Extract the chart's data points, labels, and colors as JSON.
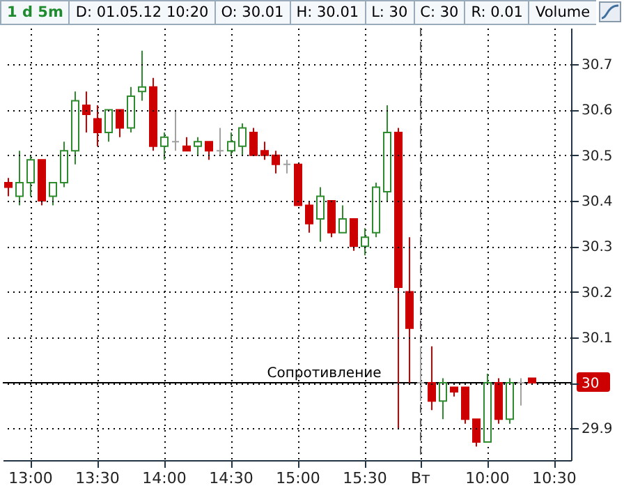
{
  "chart_data": {
    "type": "candlestick",
    "title": "1 d 5m",
    "annotations": [
      "D: 01.05.12 10:20",
      "O: 30.01",
      "H: 30.01",
      "L: 30",
      "C: 30",
      "R: 0.01",
      "Volume"
    ],
    "categories": [
      null,
      null,
      "13:00",
      null,
      null,
      null,
      null,
      null,
      "13:30",
      null,
      null,
      null,
      null,
      null,
      "14:00",
      null,
      null,
      null,
      null,
      null,
      "14:30",
      null,
      null,
      null,
      null,
      null,
      "15:00",
      null,
      null,
      null,
      null,
      null,
      "15:30",
      null,
      null,
      null,
      null,
      "Вт",
      null,
      null,
      null,
      null,
      null,
      "10:00",
      null,
      null,
      null,
      null,
      null,
      "10:30",
      null
    ],
    "ohlc": [
      [
        30.44,
        30.45,
        30.41,
        30.43
      ],
      [
        30.41,
        30.51,
        30.39,
        30.44
      ],
      [
        30.44,
        30.5,
        30.41,
        30.49
      ],
      [
        30.49,
        30.49,
        30.39,
        30.4
      ],
      [
        30.41,
        30.44,
        30.39,
        30.44
      ],
      [
        30.44,
        30.53,
        30.43,
        30.51
      ],
      [
        30.51,
        30.64,
        30.48,
        30.62
      ],
      [
        30.61,
        30.64,
        30.55,
        30.59
      ],
      [
        30.58,
        30.61,
        30.52,
        30.55
      ],
      [
        30.55,
        30.6,
        30.53,
        30.6
      ],
      [
        30.6,
        30.6,
        30.54,
        30.56
      ],
      [
        30.56,
        30.65,
        30.55,
        30.63
      ],
      [
        30.64,
        30.73,
        30.62,
        30.65
      ],
      [
        30.65,
        30.67,
        30.51,
        30.52
      ],
      [
        30.52,
        30.55,
        30.49,
        30.54
      ],
      [
        30.53,
        30.6,
        30.51,
        30.53
      ],
      [
        30.52,
        30.54,
        30.51,
        30.51
      ],
      [
        30.52,
        30.54,
        30.5,
        30.53
      ],
      [
        30.53,
        30.53,
        30.49,
        30.51
      ],
      [
        30.51,
        30.56,
        30.5,
        30.51
      ],
      [
        30.51,
        30.55,
        30.5,
        30.53
      ],
      [
        30.52,
        30.57,
        30.5,
        30.56
      ],
      [
        30.55,
        30.56,
        30.5,
        30.5
      ],
      [
        30.51,
        30.53,
        30.49,
        30.5
      ],
      [
        30.5,
        30.51,
        30.46,
        30.48
      ],
      [
        30.48,
        30.49,
        30.46,
        30.48
      ],
      [
        30.48,
        30.48,
        30.39,
        30.39
      ],
      [
        30.39,
        30.4,
        30.33,
        30.35
      ],
      [
        30.36,
        30.43,
        30.31,
        30.41
      ],
      [
        30.4,
        30.4,
        30.32,
        30.33
      ],
      [
        30.33,
        30.39,
        30.33,
        30.36
      ],
      [
        30.36,
        30.36,
        30.29,
        30.3
      ],
      [
        30.3,
        30.34,
        30.28,
        30.32
      ],
      [
        30.33,
        30.44,
        30.32,
        30.43
      ],
      [
        30.42,
        30.61,
        30.4,
        30.55
      ],
      [
        30.55,
        30.56,
        29.9,
        30.21
      ],
      [
        30.2,
        30.32,
        30.0,
        30.12
      ],
      [
        30.0,
        30.08,
        29.96,
        30.0
      ],
      [
        30.0,
        30.08,
        29.94,
        29.96
      ],
      [
        29.96,
        30.01,
        29.92,
        30.0
      ],
      [
        29.99,
        29.99,
        29.97,
        29.98
      ],
      [
        29.99,
        29.99,
        29.91,
        29.92
      ],
      [
        29.92,
        29.92,
        29.86,
        29.87
      ],
      [
        29.87,
        30.02,
        29.87,
        30.0
      ],
      [
        30.0,
        30.01,
        29.91,
        29.92
      ],
      [
        29.92,
        30.01,
        29.91,
        30.0
      ],
      [
        30.0,
        30.01,
        29.95,
        30.0
      ],
      [
        30.01,
        30.01,
        30.0,
        30.0
      ],
      null,
      null,
      null
    ],
    "colors": [
      "#cc0000",
      "#2e8b2e",
      "#2e8b2e",
      "#cc0000",
      "#2e8b2e",
      "#2e8b2e",
      "#2e8b2e",
      "#cc0000",
      "#cc0000",
      "#2e8b2e",
      "#cc0000",
      "#2e8b2e",
      "#2e8b2e",
      "#cc0000",
      "#2e8b2e",
      "#a0a0a0",
      "#cc0000",
      "#2e8b2e",
      "#cc0000",
      "#a0a0a0",
      "#2e8b2e",
      "#2e8b2e",
      "#cc0000",
      "#cc0000",
      "#cc0000",
      "#a0a0a0",
      "#cc0000",
      "#cc0000",
      "#2e8b2e",
      "#cc0000",
      "#2e8b2e",
      "#cc0000",
      "#2e8b2e",
      "#2e8b2e",
      "#2e8b2e",
      "#cc0000",
      "#cc0000",
      "#a0a0a0",
      "#cc0000",
      "#2e8b2e",
      "#cc0000",
      "#cc0000",
      "#cc0000",
      "#2e8b2e",
      "#cc0000",
      "#2e8b2e",
      "#a0a0a0",
      "#cc0000",
      null,
      null,
      null
    ],
    "ylim": [
      29.83,
      30.78
    ],
    "yticks": [
      29.9,
      30,
      30.1,
      30.2,
      30.3,
      30.4,
      30.5,
      30.6,
      30.7
    ],
    "grid": true,
    "ref_lines": [
      {
        "axis": "y",
        "value": 30,
        "label": "Сопротивление",
        "color": "#000000"
      },
      {
        "axis": "x",
        "value": "Вт",
        "color": "#606060",
        "line_style": "dashed"
      }
    ]
  }
}
